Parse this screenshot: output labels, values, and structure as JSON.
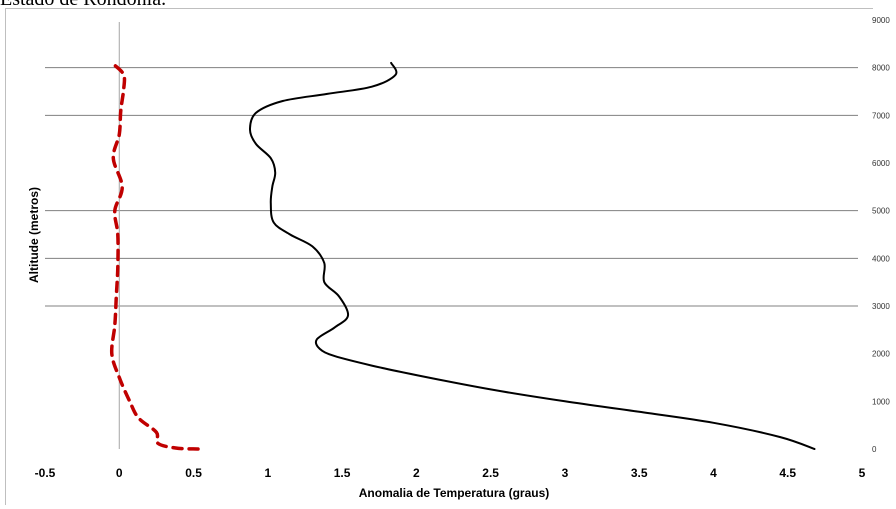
{
  "caption": "Estado de Rondônia.",
  "chart_data": {
    "type": "line",
    "title": "",
    "xlabel": "Anomalia de Temperatura (graus)",
    "ylabel": "Altitude (metros)",
    "xlim": [
      -0.5,
      5
    ],
    "ylim": [
      0,
      9000
    ],
    "x_ticks": [
      "-0.5",
      "0",
      "0.5",
      "1",
      "1.5",
      "2",
      "2.5",
      "3",
      "3.5",
      "4",
      "4.5",
      "5"
    ],
    "y_ticks": [
      "0",
      "1000",
      "2000",
      "3000",
      "4000",
      "5000",
      "6000",
      "7000",
      "8000",
      "9000"
    ],
    "gridlines_y": [
      3000,
      4000,
      5000,
      7000,
      8000
    ],
    "series": [
      {
        "color": "#000000",
        "style": "solid",
        "points": [
          [
            4.68,
            0
          ],
          [
            4.45,
            250
          ],
          [
            4.0,
            550
          ],
          [
            3.5,
            780
          ],
          [
            3.0,
            1000
          ],
          [
            2.5,
            1250
          ],
          [
            2.0,
            1550
          ],
          [
            1.7,
            1750
          ],
          [
            1.45,
            1950
          ],
          [
            1.35,
            2100
          ],
          [
            1.33,
            2300
          ],
          [
            1.45,
            2550
          ],
          [
            1.54,
            2800
          ],
          [
            1.48,
            3200
          ],
          [
            1.38,
            3500
          ],
          [
            1.38,
            3900
          ],
          [
            1.3,
            4250
          ],
          [
            1.15,
            4500
          ],
          [
            1.04,
            4750
          ],
          [
            1.02,
            5150
          ],
          [
            1.03,
            5500
          ],
          [
            1.05,
            5800
          ],
          [
            1.02,
            6100
          ],
          [
            0.92,
            6400
          ],
          [
            0.88,
            6700
          ],
          [
            0.92,
            7050
          ],
          [
            1.1,
            7300
          ],
          [
            1.4,
            7450
          ],
          [
            1.7,
            7600
          ],
          [
            1.86,
            7850
          ],
          [
            1.83,
            8100
          ]
        ]
      },
      {
        "color": "#c00000",
        "style": "dashed",
        "points": [
          [
            0.53,
            0
          ],
          [
            0.38,
            20
          ],
          [
            0.26,
            120
          ],
          [
            0.25,
            350
          ],
          [
            0.13,
            650
          ],
          [
            0.07,
            1000
          ],
          [
            0.0,
            1500
          ],
          [
            -0.05,
            2000
          ],
          [
            -0.03,
            2600
          ],
          [
            -0.02,
            3200
          ],
          [
            -0.01,
            3800
          ],
          [
            -0.01,
            4500
          ],
          [
            -0.03,
            5000
          ],
          [
            0.02,
            5500
          ],
          [
            -0.04,
            6100
          ],
          [
            0.0,
            6600
          ],
          [
            0.01,
            7100
          ],
          [
            0.03,
            7550
          ],
          [
            0.03,
            7850
          ],
          [
            -0.03,
            8050
          ]
        ]
      }
    ]
  }
}
